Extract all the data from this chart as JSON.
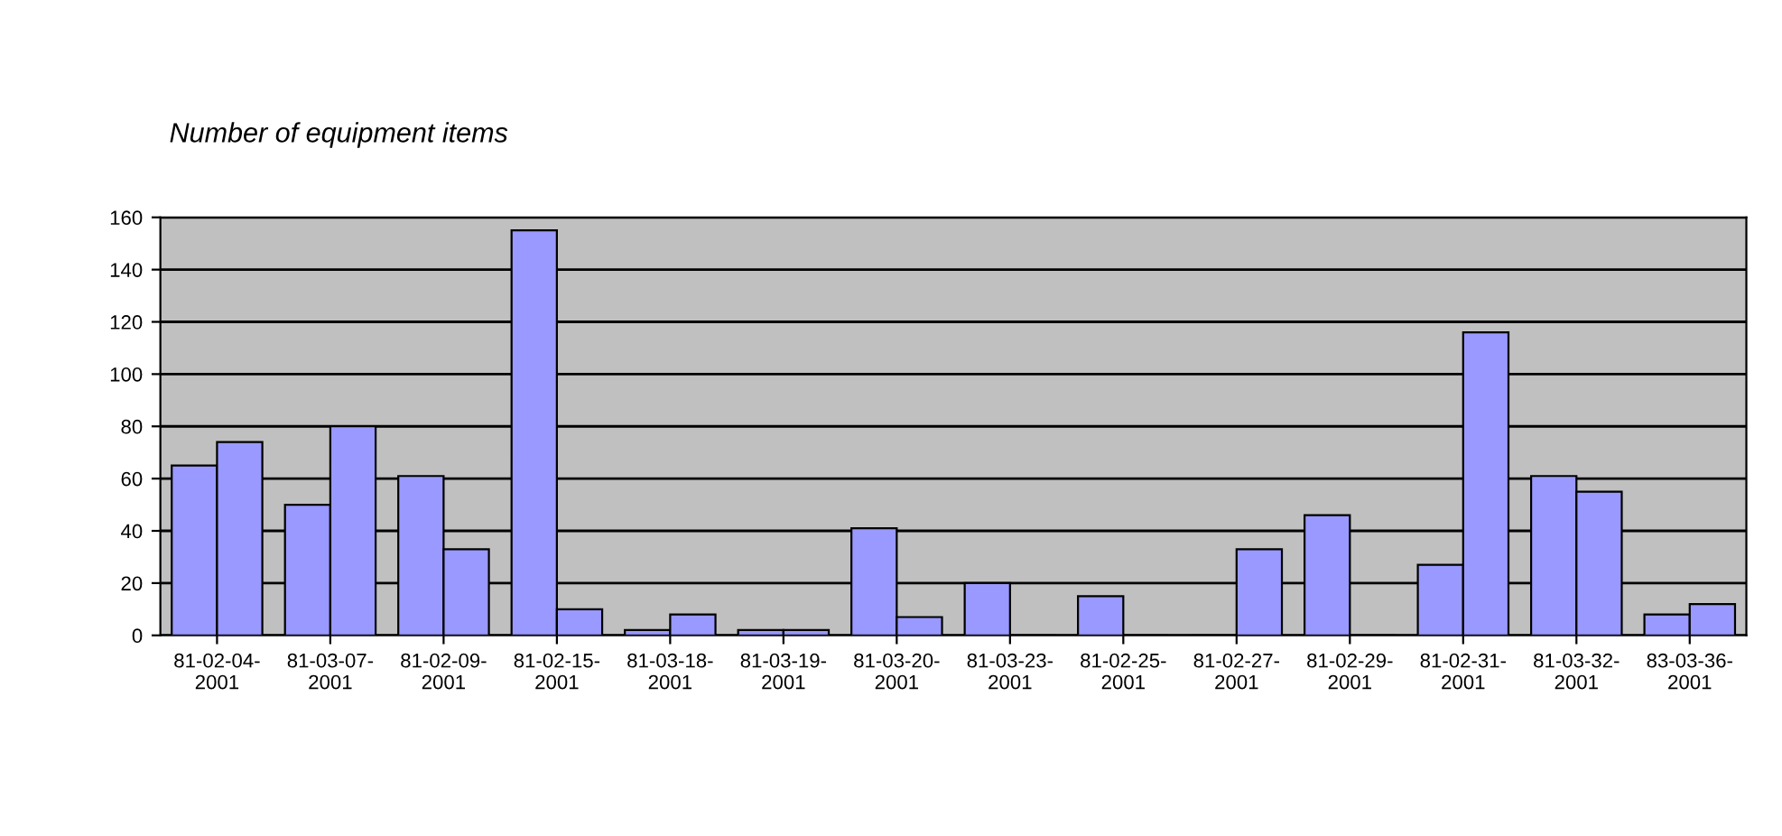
{
  "chart_data": {
    "type": "bar",
    "title": "Number of equipment items",
    "categories": [
      "81-02-04-\n2001",
      "81-03-07-\n2001",
      "81-02-09-\n2001",
      "81-02-15-\n2001",
      "81-03-18-\n2001",
      "81-03-19-\n2001",
      "81-03-20-\n2001",
      "81-03-23-\n2001",
      "81-02-25-\n2001",
      "81-02-27-\n2001",
      "81-02-29-\n2001",
      "81-02-31-\n2001",
      "81-03-32-\n2001",
      "83-03-36-\n2001"
    ],
    "series": [
      {
        "color": "#9999ff",
        "values": [
          65,
          50,
          61,
          155,
          2,
          2,
          41,
          20,
          15,
          0,
          46,
          27,
          61,
          8
        ]
      },
      {
        "color": "#9999ff",
        "values": [
          74,
          80,
          33,
          10,
          8,
          2,
          7,
          0,
          0,
          33,
          0,
          116,
          55,
          12
        ]
      }
    ],
    "ylim": [
      0,
      160
    ],
    "yticks": [
      0,
      20,
      40,
      60,
      80,
      100,
      120,
      140,
      160
    ],
    "grid": "y",
    "legend": false
  }
}
